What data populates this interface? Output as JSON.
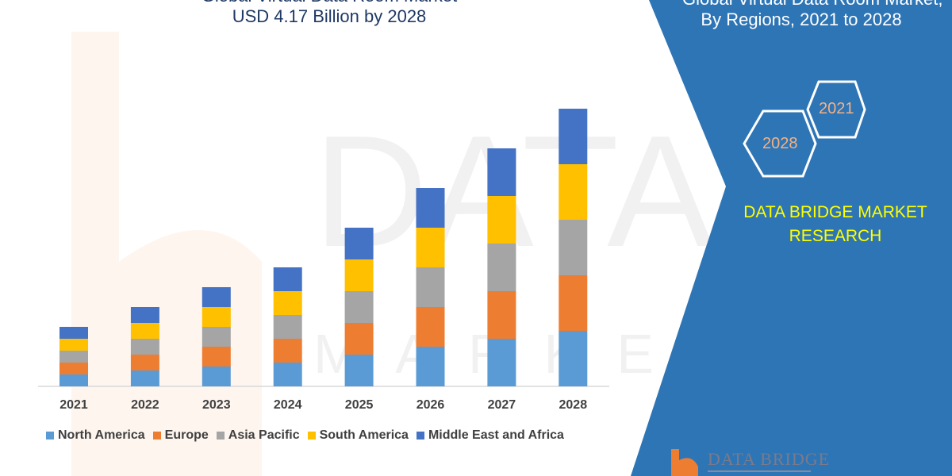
{
  "header": {
    "title_line_cut": "Global Virtual Data Room Market",
    "title": "USD 4.17 Billion by 2028"
  },
  "side_panel": {
    "title_line1": "Global Virtual Data Room Market,",
    "title_line2": "By Regions, 2021 to 2028",
    "hex_start": "2021",
    "hex_end": "2028",
    "brand_line1": "DATA BRIDGE MARKET",
    "brand_line2": "RESEARCH",
    "logo_text": "DATA BRIDGE",
    "panel_color": "#2E75B6",
    "brand_color": "#FFFF00"
  },
  "chart_data": {
    "type": "bar",
    "stacked": true,
    "categories": [
      "2021",
      "2022",
      "2023",
      "2024",
      "2025",
      "2026",
      "2027",
      "2028"
    ],
    "series": [
      {
        "name": "North America",
        "color": "#5B9BD5",
        "values": [
          1.5,
          2,
          2.5,
          3,
          4,
          5,
          6,
          7
        ]
      },
      {
        "name": "Europe",
        "color": "#ED7D31",
        "values": [
          1.5,
          2,
          2.5,
          3,
          4,
          5,
          6,
          7
        ]
      },
      {
        "name": "Asia Pacific",
        "color": "#A5A5A5",
        "values": [
          1.5,
          2,
          2.5,
          3,
          4,
          5,
          6,
          7
        ]
      },
      {
        "name": "South America",
        "color": "#FFC000",
        "values": [
          1.5,
          2,
          2.5,
          3,
          4,
          5,
          6,
          7
        ]
      },
      {
        "name": "Middle East and Africa",
        "color": "#4472C4",
        "values": [
          1.5,
          2,
          2.5,
          3,
          4,
          5,
          6,
          7
        ]
      }
    ],
    "y_axis_shown": false,
    "grid": false,
    "legend_position": "bottom"
  }
}
